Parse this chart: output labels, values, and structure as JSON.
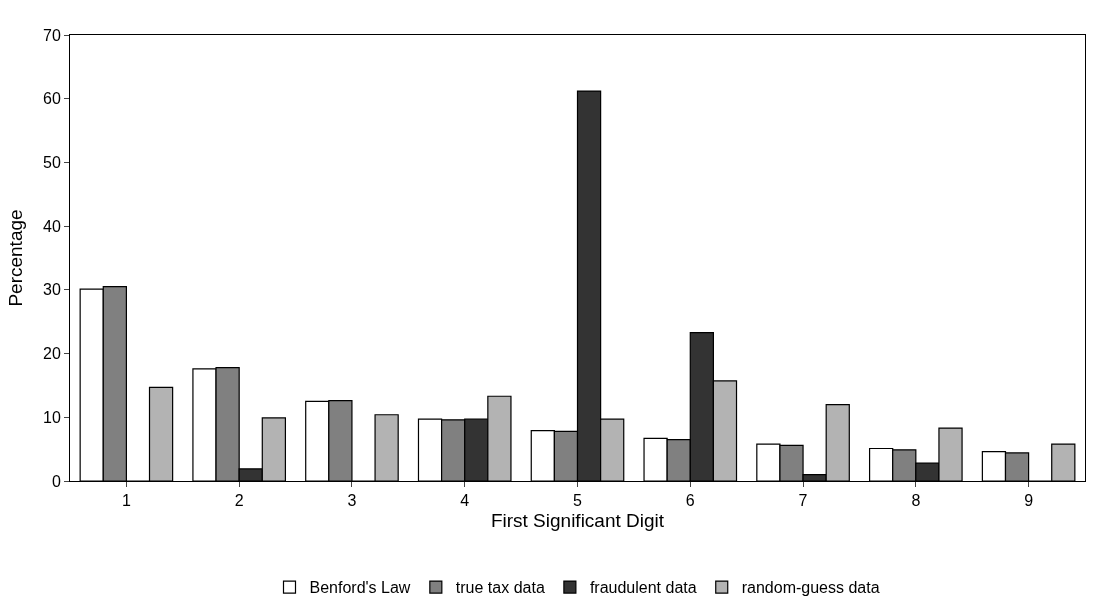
{
  "chart_data": {
    "type": "bar",
    "xlabel": "First Significant Digit",
    "ylabel": "Percentage",
    "categories": [
      "1",
      "2",
      "3",
      "4",
      "5",
      "6",
      "7",
      "8",
      "9"
    ],
    "series": [
      {
        "name": "Benford's Law",
        "color": "#ffffff",
        "values": [
          30.1,
          17.6,
          12.5,
          9.7,
          7.9,
          6.7,
          5.8,
          5.1,
          4.6
        ]
      },
      {
        "name": "true tax data",
        "color": "#808080",
        "values": [
          30.5,
          17.8,
          12.6,
          9.6,
          7.8,
          6.5,
          5.6,
          4.9,
          4.4
        ]
      },
      {
        "name": "fraudulent data",
        "color": "#333333",
        "values": [
          0,
          1.9,
          0,
          9.7,
          61.2,
          23.3,
          1.0,
          2.8,
          0
        ]
      },
      {
        "name": "random-guess data",
        "color": "#b3b3b3",
        "values": [
          14.7,
          9.9,
          10.4,
          13.3,
          9.7,
          15.7,
          12.0,
          8.3,
          5.8
        ]
      }
    ],
    "ylim": [
      0,
      70
    ],
    "yticks": [
      0,
      10,
      20,
      30,
      40,
      50,
      60,
      70
    ],
    "grid": false,
    "legend": "bottom"
  }
}
